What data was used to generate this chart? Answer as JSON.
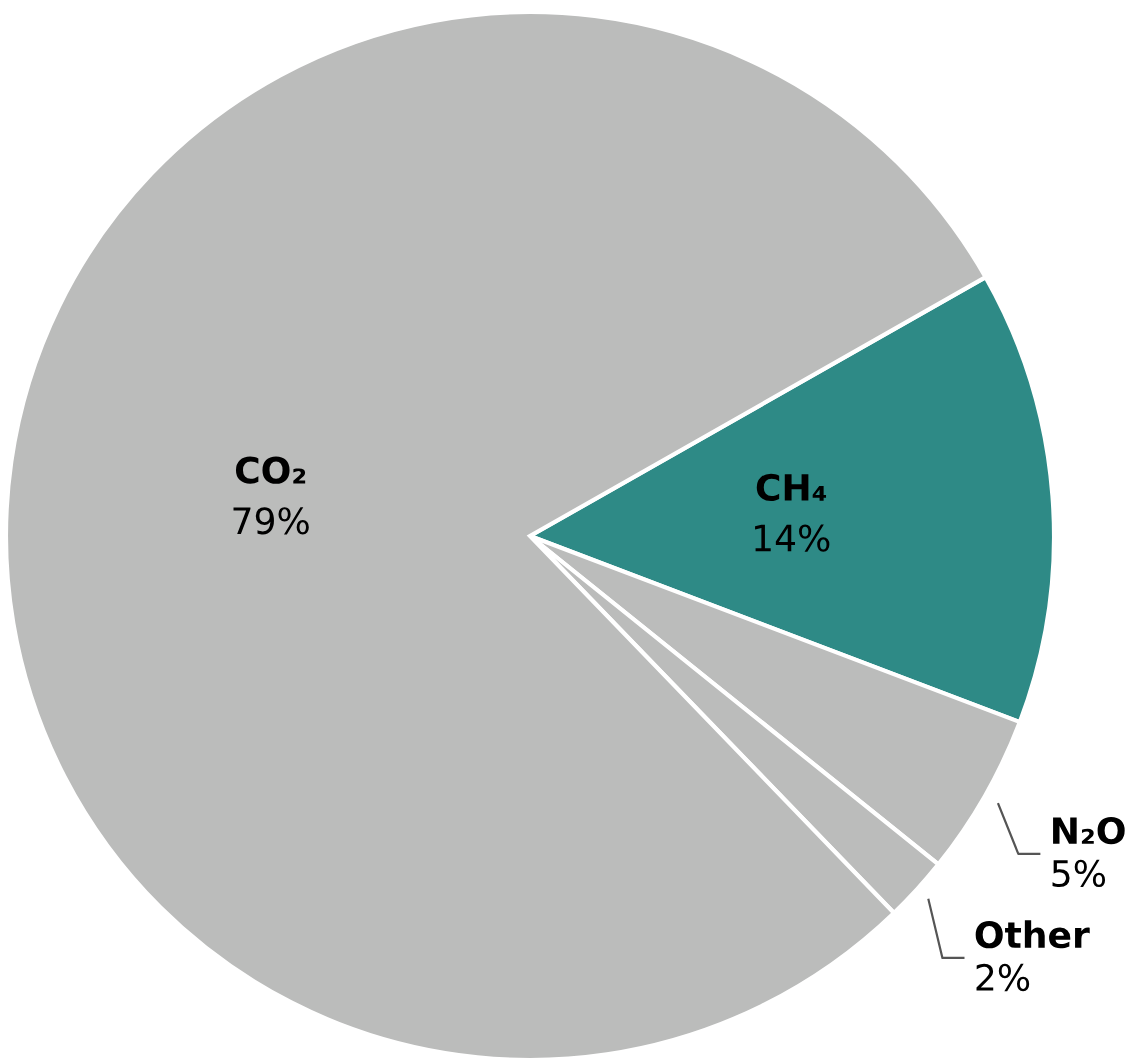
{
  "chart_data": {
    "type": "pie",
    "categories": [
      "CH₄",
      "N₂O",
      "Other",
      "CO₂"
    ],
    "values": [
      14,
      5,
      2,
      79
    ],
    "colors": [
      "#2e8a86",
      "#bbbcbb",
      "#bbbcbb",
      "#bbbcbb"
    ],
    "value_labels": [
      "14%",
      "5%",
      "2%",
      "79%"
    ],
    "legend": false
  }
}
